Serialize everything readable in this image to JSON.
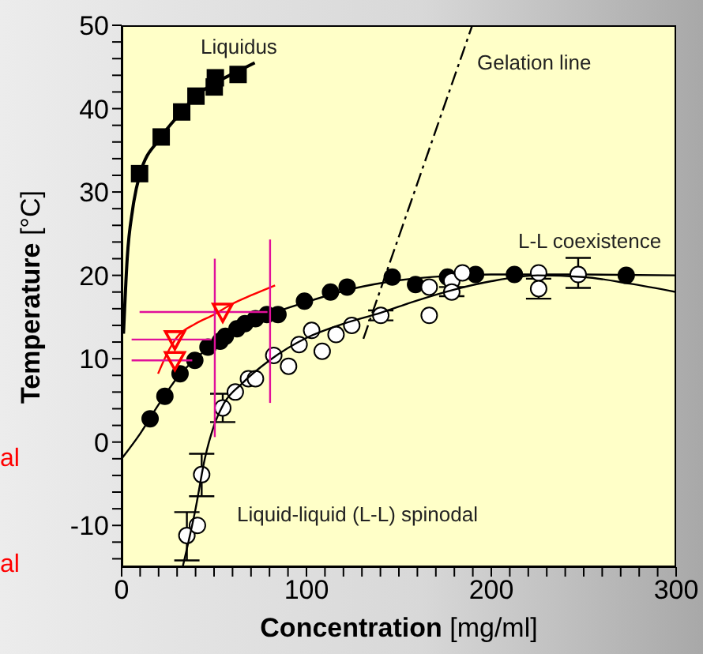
{
  "chart_data": {
    "type": "scatter",
    "xlabel": "Concentration [mg/ml]",
    "ylabel": "Temperature [°C]",
    "xlim": [
      0,
      300
    ],
    "ylim": [
      -15,
      50
    ],
    "xticks": [
      0,
      {
        "value": 10,
        "label": null
      },
      {
        "value": 20,
        "label": null
      },
      {
        "value": 30,
        "label": null
      },
      {
        "value": 40,
        "label": null
      },
      {
        "value": 50,
        "label": null
      },
      {
        "value": 60,
        "label": null
      },
      {
        "value": 70,
        "label": null
      },
      {
        "value": 80,
        "label": null
      },
      {
        "value": 90,
        "label": null
      },
      100,
      {
        "value": 110,
        "label": null
      },
      {
        "value": 120,
        "label": null
      },
      {
        "value": 130,
        "label": null
      },
      {
        "value": 140,
        "label": null
      },
      {
        "value": 150,
        "label": null
      },
      {
        "value": 160,
        "label": null
      },
      {
        "value": 170,
        "label": null
      },
      {
        "value": 180,
        "label": null
      },
      {
        "value": 190,
        "label": null
      },
      200,
      {
        "value": 210,
        "label": null
      },
      {
        "value": 220,
        "label": null
      },
      {
        "value": 230,
        "label": null
      },
      {
        "value": 240,
        "label": null
      },
      {
        "value": 250,
        "label": null
      },
      {
        "value": 260,
        "label": null
      },
      {
        "value": 270,
        "label": null
      },
      {
        "value": 280,
        "label": null
      },
      {
        "value": 290,
        "label": null
      },
      300
    ],
    "yticks": [
      {
        "value": -14,
        "label": null
      },
      {
        "value": -12,
        "label": null
      },
      -10,
      {
        "value": -8,
        "label": null
      },
      {
        "value": -6,
        "label": null
      },
      {
        "value": -4,
        "label": null
      },
      {
        "value": -2,
        "label": null
      },
      0,
      {
        "value": 2,
        "label": null
      },
      {
        "value": 4,
        "label": null
      },
      {
        "value": 6,
        "label": null
      },
      {
        "value": 8,
        "label": null
      },
      10,
      {
        "value": 12,
        "label": null
      },
      {
        "value": 14,
        "label": null
      },
      {
        "value": 16,
        "label": null
      },
      {
        "value": 18,
        "label": null
      },
      20,
      {
        "value": 22,
        "label": null
      },
      {
        "value": 24,
        "label": null
      },
      {
        "value": 26,
        "label": null
      },
      {
        "value": 28,
        "label": null
      },
      30,
      {
        "value": 32,
        "label": null
      },
      {
        "value": 34,
        "label": null
      },
      {
        "value": 36,
        "label": null
      },
      {
        "value": 38,
        "label": null
      },
      40,
      {
        "value": 42,
        "label": null
      },
      {
        "value": 44,
        "label": null
      },
      {
        "value": 46,
        "label": null
      },
      {
        "value": 48,
        "label": null
      },
      50
    ],
    "series": [
      {
        "marker": "square",
        "color": "#000000",
        "x": [
          9.7,
          21.4,
          32.5,
          40.2,
          50.1,
          50.7,
          63
        ],
        "values": [
          32.2,
          36.6,
          39.6,
          41.5,
          42.6,
          43.7,
          44.1
        ]
      },
      {
        "type": "line",
        "marker": "none",
        "color": "#000000",
        "x": [
          1,
          3,
          6,
          9.7,
          21,
          32,
          40,
          50,
          63,
          72
        ],
        "values": [
          13,
          22,
          28,
          32,
          36.5,
          39.5,
          41.5,
          43,
          44.5,
          45.5
        ]
      },
      {
        "marker": "circle",
        "color": "#000000",
        "x": [
          15.4,
          23.4,
          31.6,
          39.6,
          46.7,
          53.3,
          56.1,
          62.4,
          66.7,
          72.4,
          78.6,
          84.6,
          98.9,
          113,
          122,
          146.4,
          159,
          176.3,
          191.5,
          212.5,
          273
        ],
        "values": [
          2.8,
          5.5,
          8.2,
          9.8,
          11.4,
          12.1,
          12.7,
          13.6,
          14.2,
          14.8,
          15.3,
          15.3,
          16.9,
          18,
          18.6,
          19.8,
          18.9,
          19.8,
          20.1,
          20.1,
          20
        ]
      },
      {
        "type": "line",
        "marker": "none",
        "color": "#000000",
        "x": [
          0,
          10,
          20,
          30,
          40,
          50,
          60,
          80,
          100,
          125,
          150,
          175,
          200,
          250,
          300
        ],
        "values": [
          -2,
          1,
          4.5,
          7.7,
          10,
          11.8,
          13.2,
          15.3,
          16.8,
          18.4,
          19.4,
          19.9,
          20.1,
          20.1,
          20
        ]
      },
      {
        "marker": "circle",
        "color": "#ffffff",
        "x": [
          35.3,
          41,
          43.3,
          54.7,
          61.5,
          68.6,
          72.4,
          82.3,
          90.3,
          96,
          102.8,
          108.5,
          116,
          124.5,
          140.2,
          166.4,
          166.4,
          178.6,
          178.6,
          184.4,
          225.6,
          225.6,
          247
        ],
        "values": [
          -11.2,
          -10,
          -3.9,
          4.1,
          6,
          7.6,
          7.6,
          10.4,
          9.1,
          11.7,
          13.4,
          10.9,
          12.9,
          14,
          15.2,
          18.6,
          15.2,
          19.3,
          18,
          20.3,
          20.3,
          18.4,
          20.1
        ],
        "errors": [
          [
            -14.2,
            -8.4
          ],
          null,
          [
            -6.5,
            -1.4
          ],
          [
            2.4,
            5.8
          ],
          null,
          null,
          null,
          null,
          null,
          null,
          null,
          null,
          null,
          null,
          [
            14.6,
            15.8
          ],
          null,
          null,
          null,
          [
            17.5,
            18.6
          ],
          null,
          null,
          [
            17.2,
            19.6
          ],
          [
            18.5,
            22.1
          ]
        ]
      },
      {
        "type": "line",
        "marker": "none",
        "color": "#000000",
        "x": [
          33,
          40,
          45,
          50,
          55,
          65,
          80,
          100,
          120,
          140,
          160,
          180,
          200,
          225,
          250,
          275,
          300
        ],
        "values": [
          -15,
          -8,
          -2,
          2,
          4.5,
          7,
          9.8,
          12.5,
          14.2,
          15.5,
          17,
          18.3,
          19.3,
          20,
          19.8,
          19,
          18
        ]
      },
      {
        "type": "line",
        "marker": "none",
        "color": "#ff0000",
        "x": [
          19.7,
          25,
          30,
          40,
          50,
          60,
          70,
          83
        ],
        "values": [
          8.2,
          10.8,
          12.6,
          14.2,
          15.3,
          16.6,
          17.6,
          18.8
        ]
      },
      {
        "type": "line",
        "marker": "none",
        "color": "#e0109a",
        "x": [
          5.4,
          38.2
        ],
        "values": [
          9.8,
          9.8
        ]
      },
      {
        "type": "line",
        "marker": "none",
        "color": "#e0109a",
        "x": [
          5.4,
          48.7
        ],
        "values": [
          12.3,
          12.3
        ]
      },
      {
        "type": "line",
        "marker": "none",
        "color": "#e0109a",
        "x": [
          9.7,
          78.9
        ],
        "values": [
          15.6,
          15.6
        ]
      },
      {
        "type": "line",
        "marker": "none",
        "color": "#e0109a",
        "x": [
          50.4,
          50.4
        ],
        "values": [
          0.6,
          22
        ]
      },
      {
        "type": "line",
        "marker": "none",
        "color": "#e0109a",
        "x": [
          80.3,
          80.3
        ],
        "values": [
          4.7,
          24.3
        ]
      },
      {
        "marker": "triangle",
        "color": "#ff0000",
        "x": [
          28.8,
          28.8,
          54.7
        ],
        "values": [
          9.8,
          12.3,
          15.6
        ]
      },
      {
        "type": "line",
        "marker": "none",
        "line_style": "dashed",
        "color": "#000000",
        "x": [
          130.8,
          189.7
        ],
        "values": [
          12.4,
          50
        ]
      }
    ],
    "annotations": [
      "Liquidus",
      "Gelation line",
      "L-L coexistence",
      "Liquid-liquid (L-L) spinodal",
      "al",
      "al"
    ]
  }
}
